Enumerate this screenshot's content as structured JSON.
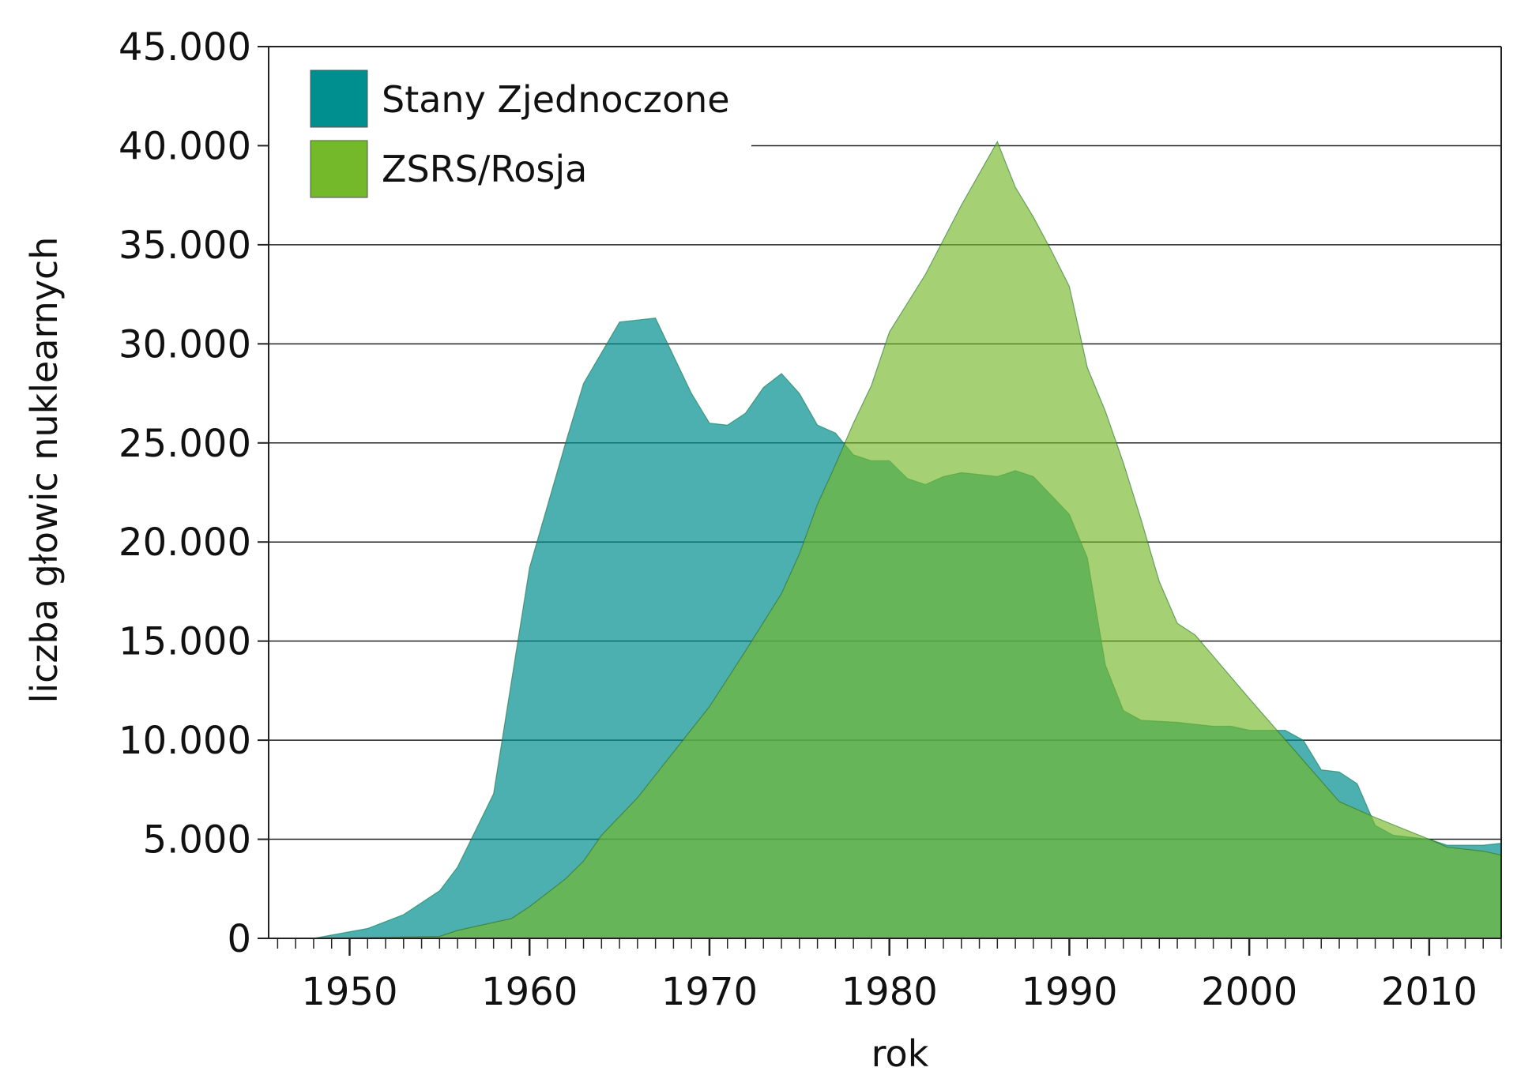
{
  "chart_data": {
    "type": "area",
    "xlabel": "rok",
    "ylabel": "liczba głowic nuklearnych",
    "xlim": [
      1945.5,
      2014
    ],
    "ylim": [
      0,
      45000
    ],
    "x_ticks": [
      "1950",
      "1960",
      "1970",
      "1980",
      "1990",
      "2000",
      "2010"
    ],
    "y_ticks": [
      "0",
      "5.000",
      "10.000",
      "15.000",
      "20.000",
      "25.000",
      "30.000",
      "35.000",
      "40.000",
      "45.000"
    ],
    "grid": true,
    "legend_position": "top-left",
    "series": [
      {
        "name": "Stany Zjednoczone",
        "color": "#008f8f",
        "points": [
          [
            1948,
            0
          ],
          [
            1951,
            500
          ],
          [
            1953,
            1200
          ],
          [
            1955,
            2400
          ],
          [
            1956,
            3600
          ],
          [
            1958,
            7300
          ],
          [
            1960,
            18700
          ],
          [
            1962,
            25000
          ],
          [
            1963,
            28000
          ],
          [
            1965,
            31100
          ],
          [
            1967,
            31300
          ],
          [
            1969,
            27500
          ],
          [
            1970,
            26000
          ],
          [
            1971,
            25900
          ],
          [
            1972,
            26500
          ],
          [
            1973,
            27800
          ],
          [
            1974,
            28500
          ],
          [
            1975,
            27500
          ],
          [
            1976,
            25900
          ],
          [
            1977,
            25500
          ],
          [
            1978,
            24400
          ],
          [
            1979,
            24100
          ],
          [
            1980,
            24100
          ],
          [
            1981,
            23200
          ],
          [
            1982,
            22900
          ],
          [
            1983,
            23300
          ],
          [
            1984,
            23500
          ],
          [
            1986,
            23300
          ],
          [
            1987,
            23600
          ],
          [
            1988,
            23300
          ],
          [
            1990,
            21400
          ],
          [
            1991,
            19200
          ],
          [
            1992,
            13800
          ],
          [
            1993,
            11500
          ],
          [
            1994,
            11000
          ],
          [
            1996,
            10900
          ],
          [
            1998,
            10700
          ],
          [
            1999,
            10700
          ],
          [
            2000,
            10500
          ],
          [
            2002,
            10500
          ],
          [
            2003,
            10000
          ],
          [
            2004,
            8500
          ],
          [
            2005,
            8400
          ],
          [
            2006,
            7800
          ],
          [
            2007,
            5700
          ],
          [
            2008,
            5200
          ],
          [
            2010,
            5000
          ],
          [
            2011,
            4700
          ],
          [
            2013,
            4700
          ],
          [
            2014,
            4800
          ]
        ]
      },
      {
        "name": "ZSRS/Rosja",
        "color": "#74b92a",
        "points": [
          [
            1949,
            0
          ],
          [
            1955,
            100
          ],
          [
            1956,
            400
          ],
          [
            1959,
            1000
          ],
          [
            1960,
            1600
          ],
          [
            1962,
            3000
          ],
          [
            1963,
            3900
          ],
          [
            1964,
            5200
          ],
          [
            1966,
            7100
          ],
          [
            1968,
            9400
          ],
          [
            1970,
            11700
          ],
          [
            1972,
            14500
          ],
          [
            1974,
            17400
          ],
          [
            1975,
            19400
          ],
          [
            1976,
            21900
          ],
          [
            1977,
            23900
          ],
          [
            1978,
            26000
          ],
          [
            1979,
            27900
          ],
          [
            1980,
            30600
          ],
          [
            1982,
            33500
          ],
          [
            1984,
            37000
          ],
          [
            1986,
            40200
          ],
          [
            1987,
            37900
          ],
          [
            1988,
            36400
          ],
          [
            1989,
            34700
          ],
          [
            1990,
            32900
          ],
          [
            1991,
            28800
          ],
          [
            1992,
            26600
          ],
          [
            1993,
            24000
          ],
          [
            1994,
            21100
          ],
          [
            1995,
            18000
          ],
          [
            1996,
            15900
          ],
          [
            1997,
            15300
          ],
          [
            2000,
            12100
          ],
          [
            2005,
            6900
          ],
          [
            2007,
            6100
          ],
          [
            2010,
            5000
          ],
          [
            2011,
            4600
          ],
          [
            2013,
            4400
          ],
          [
            2014,
            4200
          ]
        ]
      }
    ]
  }
}
